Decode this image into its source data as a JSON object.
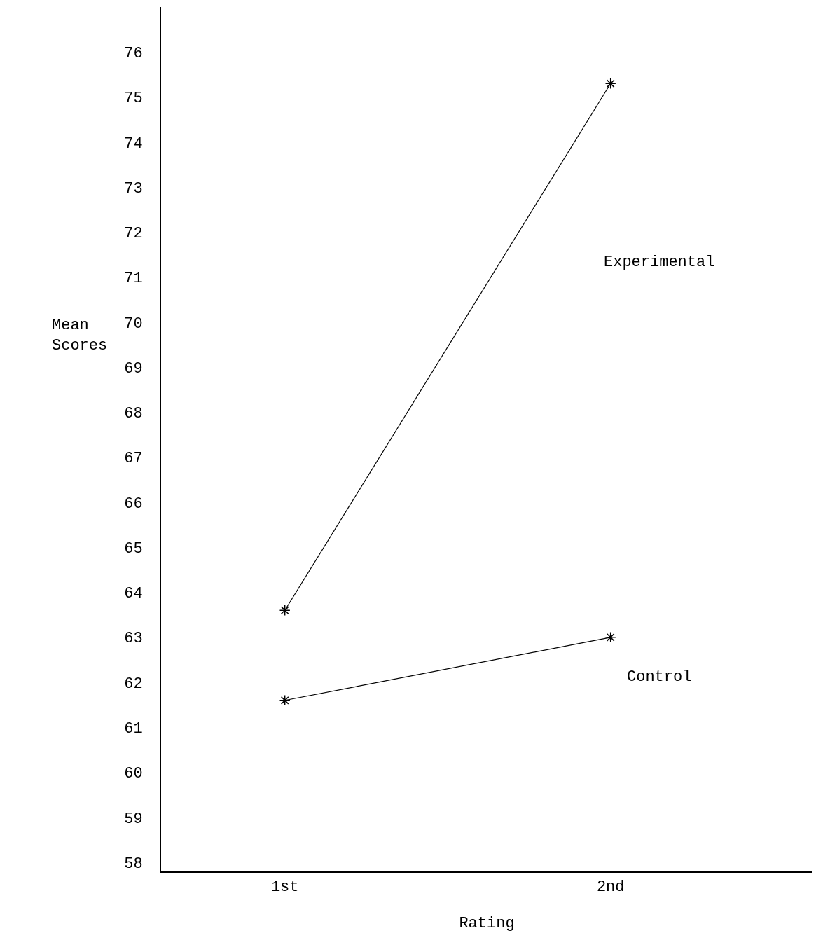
{
  "chart_data": {
    "type": "line",
    "xlabel": "Rating",
    "ylabel": "Mean\nScores",
    "categories": [
      "1st",
      "2nd"
    ],
    "series": [
      {
        "name": "Experimental",
        "color": "#000000",
        "values": [
          63.6,
          75.3
        ]
      },
      {
        "name": "Control",
        "color": "#000000",
        "values": [
          61.6,
          63.0
        ]
      }
    ],
    "ylim": [
      57.8,
      77.0
    ],
    "yticks": [
      58,
      59,
      60,
      61,
      62,
      63,
      64,
      65,
      66,
      67,
      68,
      69,
      70,
      71,
      72,
      73,
      74,
      75,
      76
    ],
    "marker": "cross",
    "line_style": "solid",
    "legend": false
  }
}
